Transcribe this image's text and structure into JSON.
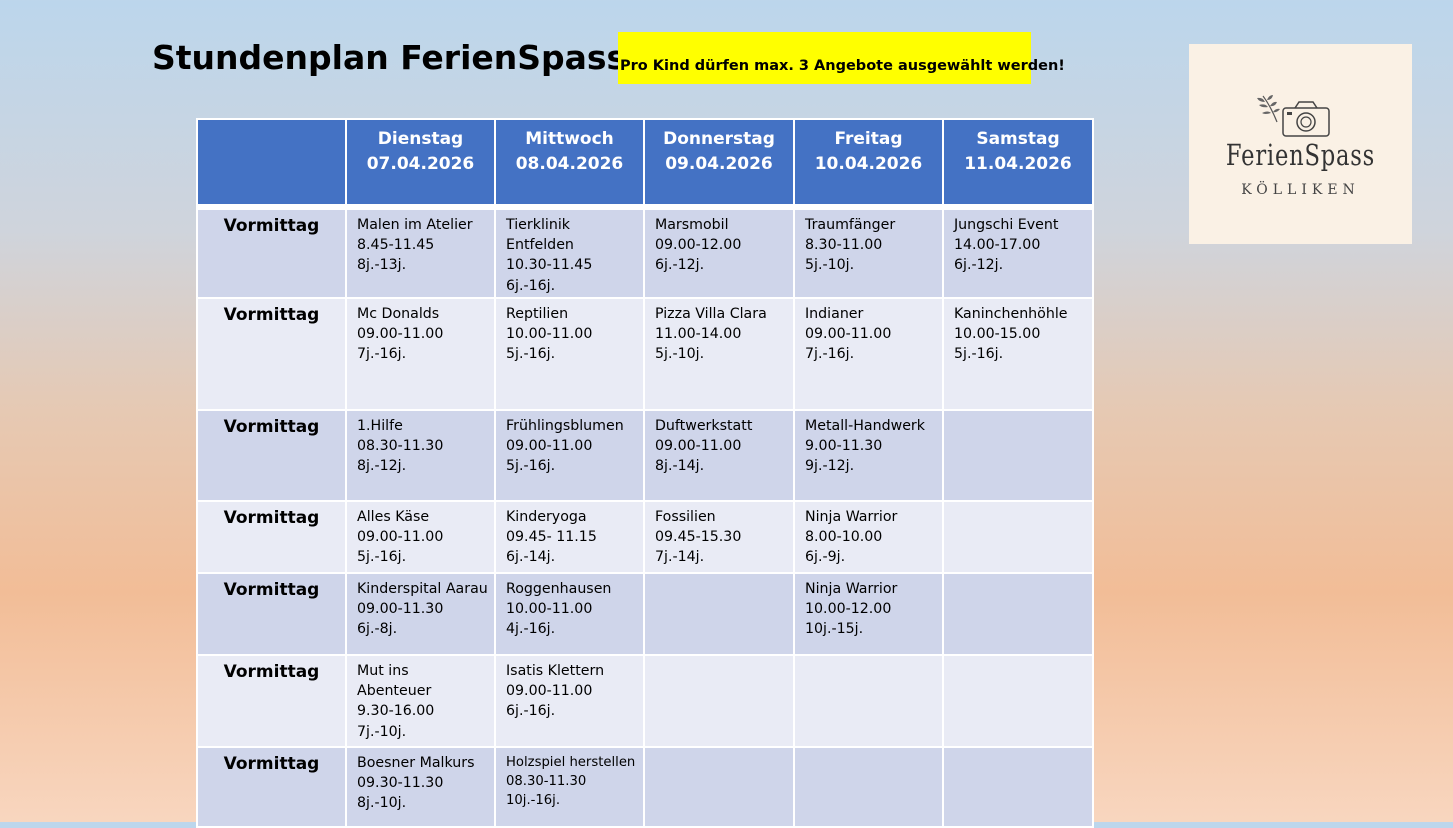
{
  "title": "Stundenplan FerienSpass",
  "notice": "Pro Kind dürfen max. 3 Angebote ausgewählt werden!",
  "logo": {
    "main": "FerienSpass",
    "sub": "KÖLLIKEN"
  },
  "days": [
    {
      "day": "Dienstag",
      "date": "07.04.2026"
    },
    {
      "day": "Mittwoch",
      "date": "08.04.2026"
    },
    {
      "day": "Donnerstag",
      "date": "09.04.2026"
    },
    {
      "day": "Freitag",
      "date": "10.04.2026"
    },
    {
      "day": "Samstag",
      "date": "11.04.2026"
    }
  ],
  "rows": [
    {
      "slot": "Vormittag",
      "cells": [
        [
          "Malen im Atelier",
          "8.45-11.45",
          "8j.-13j."
        ],
        [
          "Tierklinik",
          "Entfelden",
          "10.30-11.45",
          "6j.-16j."
        ],
        [
          "Marsmobil",
          "09.00-12.00",
          "6j.-12j."
        ],
        [
          "Traumfänger",
          "8.30-11.00",
          "5j.-10j."
        ],
        [
          "Jungschi Event",
          "14.00-17.00",
          "6j.-12j."
        ]
      ]
    },
    {
      "slot": "Vormittag",
      "cells": [
        [
          "Mc Donalds",
          "09.00-11.00",
          "7j.-16j."
        ],
        [
          "Reptilien",
          "10.00-11.00",
          "5j.-16j."
        ],
        [
          "Pizza Villa Clara",
          "11.00-14.00",
          "5j.-10j."
        ],
        [
          "Indianer",
          "09.00-11.00",
          "7j.-16j."
        ],
        [
          "Kaninchenhöhle",
          "10.00-15.00",
          "5j.-16j."
        ]
      ]
    },
    {
      "slot": "Vormittag",
      "cells": [
        [
          "1.Hilfe",
          "08.30-11.30",
          "8j.-12j."
        ],
        [
          "Frühlingsblumen",
          "09.00-11.00",
          "5j.-16j."
        ],
        [
          "Duftwerkstatt",
          "09.00-11.00",
          "8j.-14j."
        ],
        [
          "Metall-Handwerk",
          "9.00-11.30",
          "9j.-12j."
        ],
        []
      ]
    },
    {
      "slot": "Vormittag",
      "cells": [
        [
          "Alles Käse",
          "09.00-11.00",
          "5j.-16j."
        ],
        [
          "Kinderyoga",
          "09.45- 11.15",
          "6j.-14j."
        ],
        [
          "Fossilien",
          "09.45-15.30",
          "7j.-14j."
        ],
        [
          "Ninja Warrior",
          "8.00-10.00",
          "6j.-9j."
        ],
        []
      ]
    },
    {
      "slot": "Vormittag",
      "cells": [
        [
          "Kinderspital Aarau",
          "09.00-11.30",
          "6j.-8j."
        ],
        [
          "Roggenhausen",
          "10.00-11.00",
          "4j.-16j."
        ],
        [],
        [
          "Ninja Warrior",
          "10.00-12.00",
          "10j.-15j."
        ],
        []
      ]
    },
    {
      "slot": "Vormittag",
      "cells": [
        [
          "Mut ins",
          "Abenteuer",
          "9.30-16.00",
          "7j.-10j."
        ],
        [
          "Isatis Klettern",
          "09.00-11.00",
          "6j.-16j."
        ],
        [],
        [],
        []
      ]
    },
    {
      "slot": "Vormittag",
      "cells": [
        [
          "Boesner Malkurs",
          "09.30-11.30",
          "8j.-10j."
        ],
        [
          "Holzspiel herstellen",
          "08.30-11.30",
          "10j.-16j."
        ],
        [],
        [],
        []
      ]
    }
  ]
}
